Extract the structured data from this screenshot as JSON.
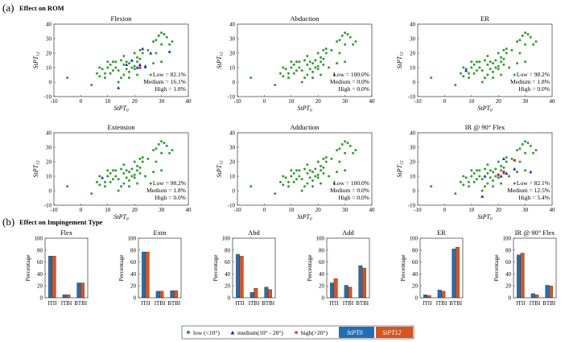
{
  "figure": {
    "section_a_label": "(a)",
    "section_a_title": "Effect on ROM",
    "section_b_label": "(b)",
    "section_b_title": "Effect on Impingement Type"
  },
  "colors": {
    "low": "#2ca02c",
    "medium": "#1f22d4",
    "high": "#e02020",
    "stpt0": "#1f6fb4",
    "stpt12": "#d9541e"
  },
  "legend": {
    "low": "low (<10°)",
    "medium": "medium(10° - 20°)",
    "high": "high(>20°)",
    "stpt0": "StPT0",
    "stpt12": "StPT12"
  },
  "chart_data": [
    {
      "type": "scatter",
      "title": "Flexion",
      "xlabel": "StPT0",
      "ylabel": "StPT12",
      "xlim": [
        -10,
        40
      ],
      "ylim": [
        -10,
        40
      ],
      "xticks": [
        "-10",
        "0",
        "10",
        "20",
        "30",
        "40"
      ],
      "yticks": [
        "-10",
        "0",
        "10",
        "20",
        "30",
        "40"
      ],
      "stats": [
        "Low = 82.1%",
        "Medium = 16.1%",
        "High = 1.8%"
      ],
      "medium_points": [
        [
          14,
          -4
        ],
        [
          17,
          12
        ],
        [
          19,
          15
        ],
        [
          21,
          10
        ],
        [
          22,
          12
        ],
        [
          23,
          23
        ],
        [
          24,
          11
        ],
        [
          26,
          20
        ],
        [
          33,
          21
        ]
      ],
      "high_points": [
        [
          22,
          10
        ]
      ]
    },
    {
      "type": "scatter",
      "title": "Abduction",
      "xlabel": "StPT0",
      "ylabel": "StPT12",
      "xlim": [
        -10,
        40
      ],
      "ylim": [
        -10,
        40
      ],
      "xticks": [
        "-10",
        "0",
        "10",
        "20",
        "30",
        "40"
      ],
      "yticks": [
        "-10",
        "0",
        "10",
        "20",
        "30",
        "40"
      ],
      "stats": [
        "Low = 100.0%",
        "Medium = 0.0%",
        "High = 0.0%"
      ],
      "medium_points": [],
      "high_points": []
    },
    {
      "type": "scatter",
      "title": "ER",
      "xlabel": "StPT0",
      "ylabel": "StPT12",
      "xlim": [
        -10,
        40
      ],
      "ylim": [
        -10,
        40
      ],
      "xticks": [
        "-10",
        "0",
        "10",
        "20",
        "30",
        "40"
      ],
      "yticks": [
        "-10",
        "0",
        "10",
        "20",
        "30",
        "40"
      ],
      "stats": [
        "Low = 98.2%",
        "Medium = 1.8%",
        "High = 0.0%"
      ],
      "medium_points": [
        [
          8,
          8
        ]
      ],
      "high_points": []
    },
    {
      "type": "scatter",
      "title": "Extension",
      "xlabel": "StPT0",
      "ylabel": "StPT12",
      "xlim": [
        -10,
        40
      ],
      "ylim": [
        -10,
        40
      ],
      "xticks": [
        "-10",
        "0",
        "10",
        "20",
        "30",
        "40"
      ],
      "yticks": [
        "-10",
        "0",
        "10",
        "20",
        "30",
        "40"
      ],
      "stats": [
        "Low = 98.2%",
        "Medium = 1.8%",
        "High = 0.0%"
      ],
      "medium_points": [
        [
          8,
          9
        ]
      ],
      "high_points": []
    },
    {
      "type": "scatter",
      "title": "Adduction",
      "xlabel": "StPT0",
      "ylabel": "StPT12",
      "xlim": [
        -10,
        40
      ],
      "ylim": [
        -10,
        40
      ],
      "xticks": [
        "-10",
        "0",
        "10",
        "20",
        "30",
        "40"
      ],
      "yticks": [
        "-10",
        "0",
        "10",
        "20",
        "30",
        "40"
      ],
      "stats": [
        "Low = 100.0%",
        "Medium = 0.0%",
        "High = 0.0%"
      ],
      "medium_points": [],
      "high_points": []
    },
    {
      "type": "scatter",
      "title": "IR @ 90° Flex",
      "xlabel": "StPT0",
      "ylabel": "StPT12",
      "xlim": [
        -10,
        40
      ],
      "ylim": [
        -10,
        40
      ],
      "xticks": [
        "-10",
        "0",
        "10",
        "20",
        "30",
        "40"
      ],
      "yticks": [
        "-10",
        "0",
        "10",
        "20",
        "30",
        "40"
      ],
      "stats": [
        "Low = 82.1%",
        "Medium = 12.5%",
        "High = 5.4%"
      ],
      "medium_points": [
        [
          14,
          -4
        ],
        [
          15,
          10
        ],
        [
          21,
          10
        ],
        [
          22,
          22
        ],
        [
          23,
          12
        ],
        [
          26,
          15
        ],
        [
          32,
          13
        ]
      ],
      "high_points": [
        [
          20,
          11
        ],
        [
          22,
          13
        ],
        [
          26,
          21
        ]
      ]
    },
    {
      "type": "bar",
      "title": "Flex",
      "ylabel": "Percentage",
      "categories": [
        "ITII",
        "ITBI",
        "BTBI"
      ],
      "ylim": [
        0,
        100
      ],
      "yticks": [
        "0",
        "20",
        "40",
        "60",
        "80",
        "100"
      ],
      "series": [
        {
          "name": "StPT0",
          "values": [
            70,
            5,
            25
          ]
        },
        {
          "name": "StPT12",
          "values": [
            70,
            5,
            25
          ]
        }
      ]
    },
    {
      "type": "bar",
      "title": "Extn",
      "ylabel": "Percentage",
      "categories": [
        "ITII",
        "ITBI",
        "BTBI"
      ],
      "ylim": [
        0,
        100
      ],
      "yticks": [
        "0",
        "20",
        "40",
        "60",
        "80",
        "100"
      ],
      "series": [
        {
          "name": "StPT0",
          "values": [
            77,
            11,
            12
          ]
        },
        {
          "name": "StPT12",
          "values": [
            77,
            11,
            12
          ]
        }
      ]
    },
    {
      "type": "bar",
      "title": "Abd",
      "ylabel": "Percentage",
      "categories": [
        "ITII",
        "ITBI",
        "BTBI"
      ],
      "ylim": [
        0,
        100
      ],
      "yticks": [
        "0",
        "20",
        "40",
        "60",
        "80",
        "100"
      ],
      "series": [
        {
          "name": "StPT0",
          "values": [
            73,
            9,
            18
          ]
        },
        {
          "name": "StPT12",
          "values": [
            70,
            16,
            14
          ]
        }
      ]
    },
    {
      "type": "bar",
      "title": "Add",
      "ylabel": "Percentage",
      "categories": [
        "ITII",
        "ITBI",
        "BTBI"
      ],
      "ylim": [
        0,
        100
      ],
      "yticks": [
        "0",
        "20",
        "40",
        "60",
        "80",
        "100"
      ],
      "series": [
        {
          "name": "StPT0",
          "values": [
            25,
            21,
            54
          ]
        },
        {
          "name": "StPT12",
          "values": [
            32,
            18,
            50
          ]
        }
      ]
    },
    {
      "type": "bar",
      "title": "ER",
      "ylabel": "Percentage",
      "categories": [
        "ITII",
        "ITBI",
        "BTBI"
      ],
      "ylim": [
        0,
        100
      ],
      "yticks": [
        "0",
        "20",
        "40",
        "60",
        "80",
        "100"
      ],
      "series": [
        {
          "name": "StPT0",
          "values": [
            5,
            13,
            82
          ]
        },
        {
          "name": "StPT12",
          "values": [
            4,
            11,
            85
          ]
        }
      ]
    },
    {
      "type": "bar",
      "title": "IR @ 90° Flex",
      "ylabel": "Percentage",
      "categories": [
        "ITII",
        "ITBI",
        "BTBI"
      ],
      "ylim": [
        0,
        100
      ],
      "yticks": [
        "0",
        "20",
        "40",
        "60",
        "80",
        "100"
      ],
      "series": [
        {
          "name": "StPT0",
          "values": [
            72,
            7,
            21
          ]
        },
        {
          "name": "StPT12",
          "values": [
            75,
            5,
            20
          ]
        }
      ]
    }
  ],
  "base_low_points": [
    [
      -5,
      3
    ],
    [
      4,
      -2
    ],
    [
      6,
      6
    ],
    [
      7,
      4
    ],
    [
      7,
      10
    ],
    [
      8,
      9
    ],
    [
      9,
      3
    ],
    [
      9,
      6
    ],
    [
      10,
      10
    ],
    [
      10,
      14
    ],
    [
      11,
      12
    ],
    [
      11,
      6
    ],
    [
      12,
      8
    ],
    [
      12,
      14
    ],
    [
      13,
      10
    ],
    [
      13,
      14
    ],
    [
      14,
      8
    ],
    [
      14,
      0
    ],
    [
      15,
      15
    ],
    [
      15,
      3
    ],
    [
      16,
      12
    ],
    [
      16,
      5
    ],
    [
      16,
      18
    ],
    [
      17,
      9
    ],
    [
      17,
      14
    ],
    [
      18,
      13
    ],
    [
      18,
      7
    ],
    [
      18,
      3
    ],
    [
      19,
      10
    ],
    [
      19,
      15
    ],
    [
      20,
      9
    ],
    [
      20,
      11
    ],
    [
      20,
      20
    ],
    [
      21,
      5
    ],
    [
      21,
      14
    ],
    [
      21,
      17
    ],
    [
      22,
      12
    ],
    [
      22,
      16
    ],
    [
      22,
      22
    ],
    [
      23,
      23
    ],
    [
      23,
      20
    ],
    [
      24,
      10
    ],
    [
      25,
      22
    ],
    [
      26,
      5
    ],
    [
      27,
      13
    ],
    [
      27,
      28
    ],
    [
      28,
      20
    ],
    [
      28,
      29
    ],
    [
      29,
      32
    ],
    [
      30,
      14
    ],
    [
      30,
      26
    ],
    [
      30,
      34
    ],
    [
      31,
      33
    ],
    [
      32,
      31
    ],
    [
      33,
      26
    ],
    [
      34,
      28
    ]
  ]
}
